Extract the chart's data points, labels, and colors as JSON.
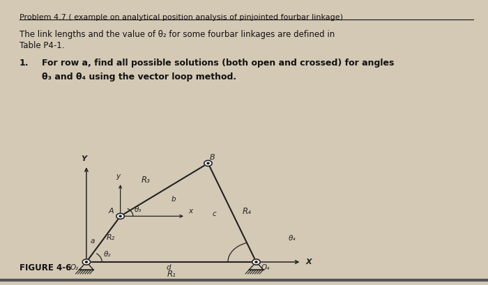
{
  "bg_color": "#d4c9b5",
  "title": "Problem 4.7 ( example on analytical position analysis of pinjointed fourbar linkage)",
  "para1_line1": "The link lengths and the value of θ₂ for some fourbar linkages are defined in",
  "para1_line2": "Table P4-1.",
  "item1_bold": "For row a, find all possible solutions (both open and crossed) for angles",
  "item1_bold2": "θ₃ and θ₄ using the vector loop method.",
  "figure_label": "FIGURE 4-6",
  "link_color": "#222222",
  "text_color": "#111111"
}
